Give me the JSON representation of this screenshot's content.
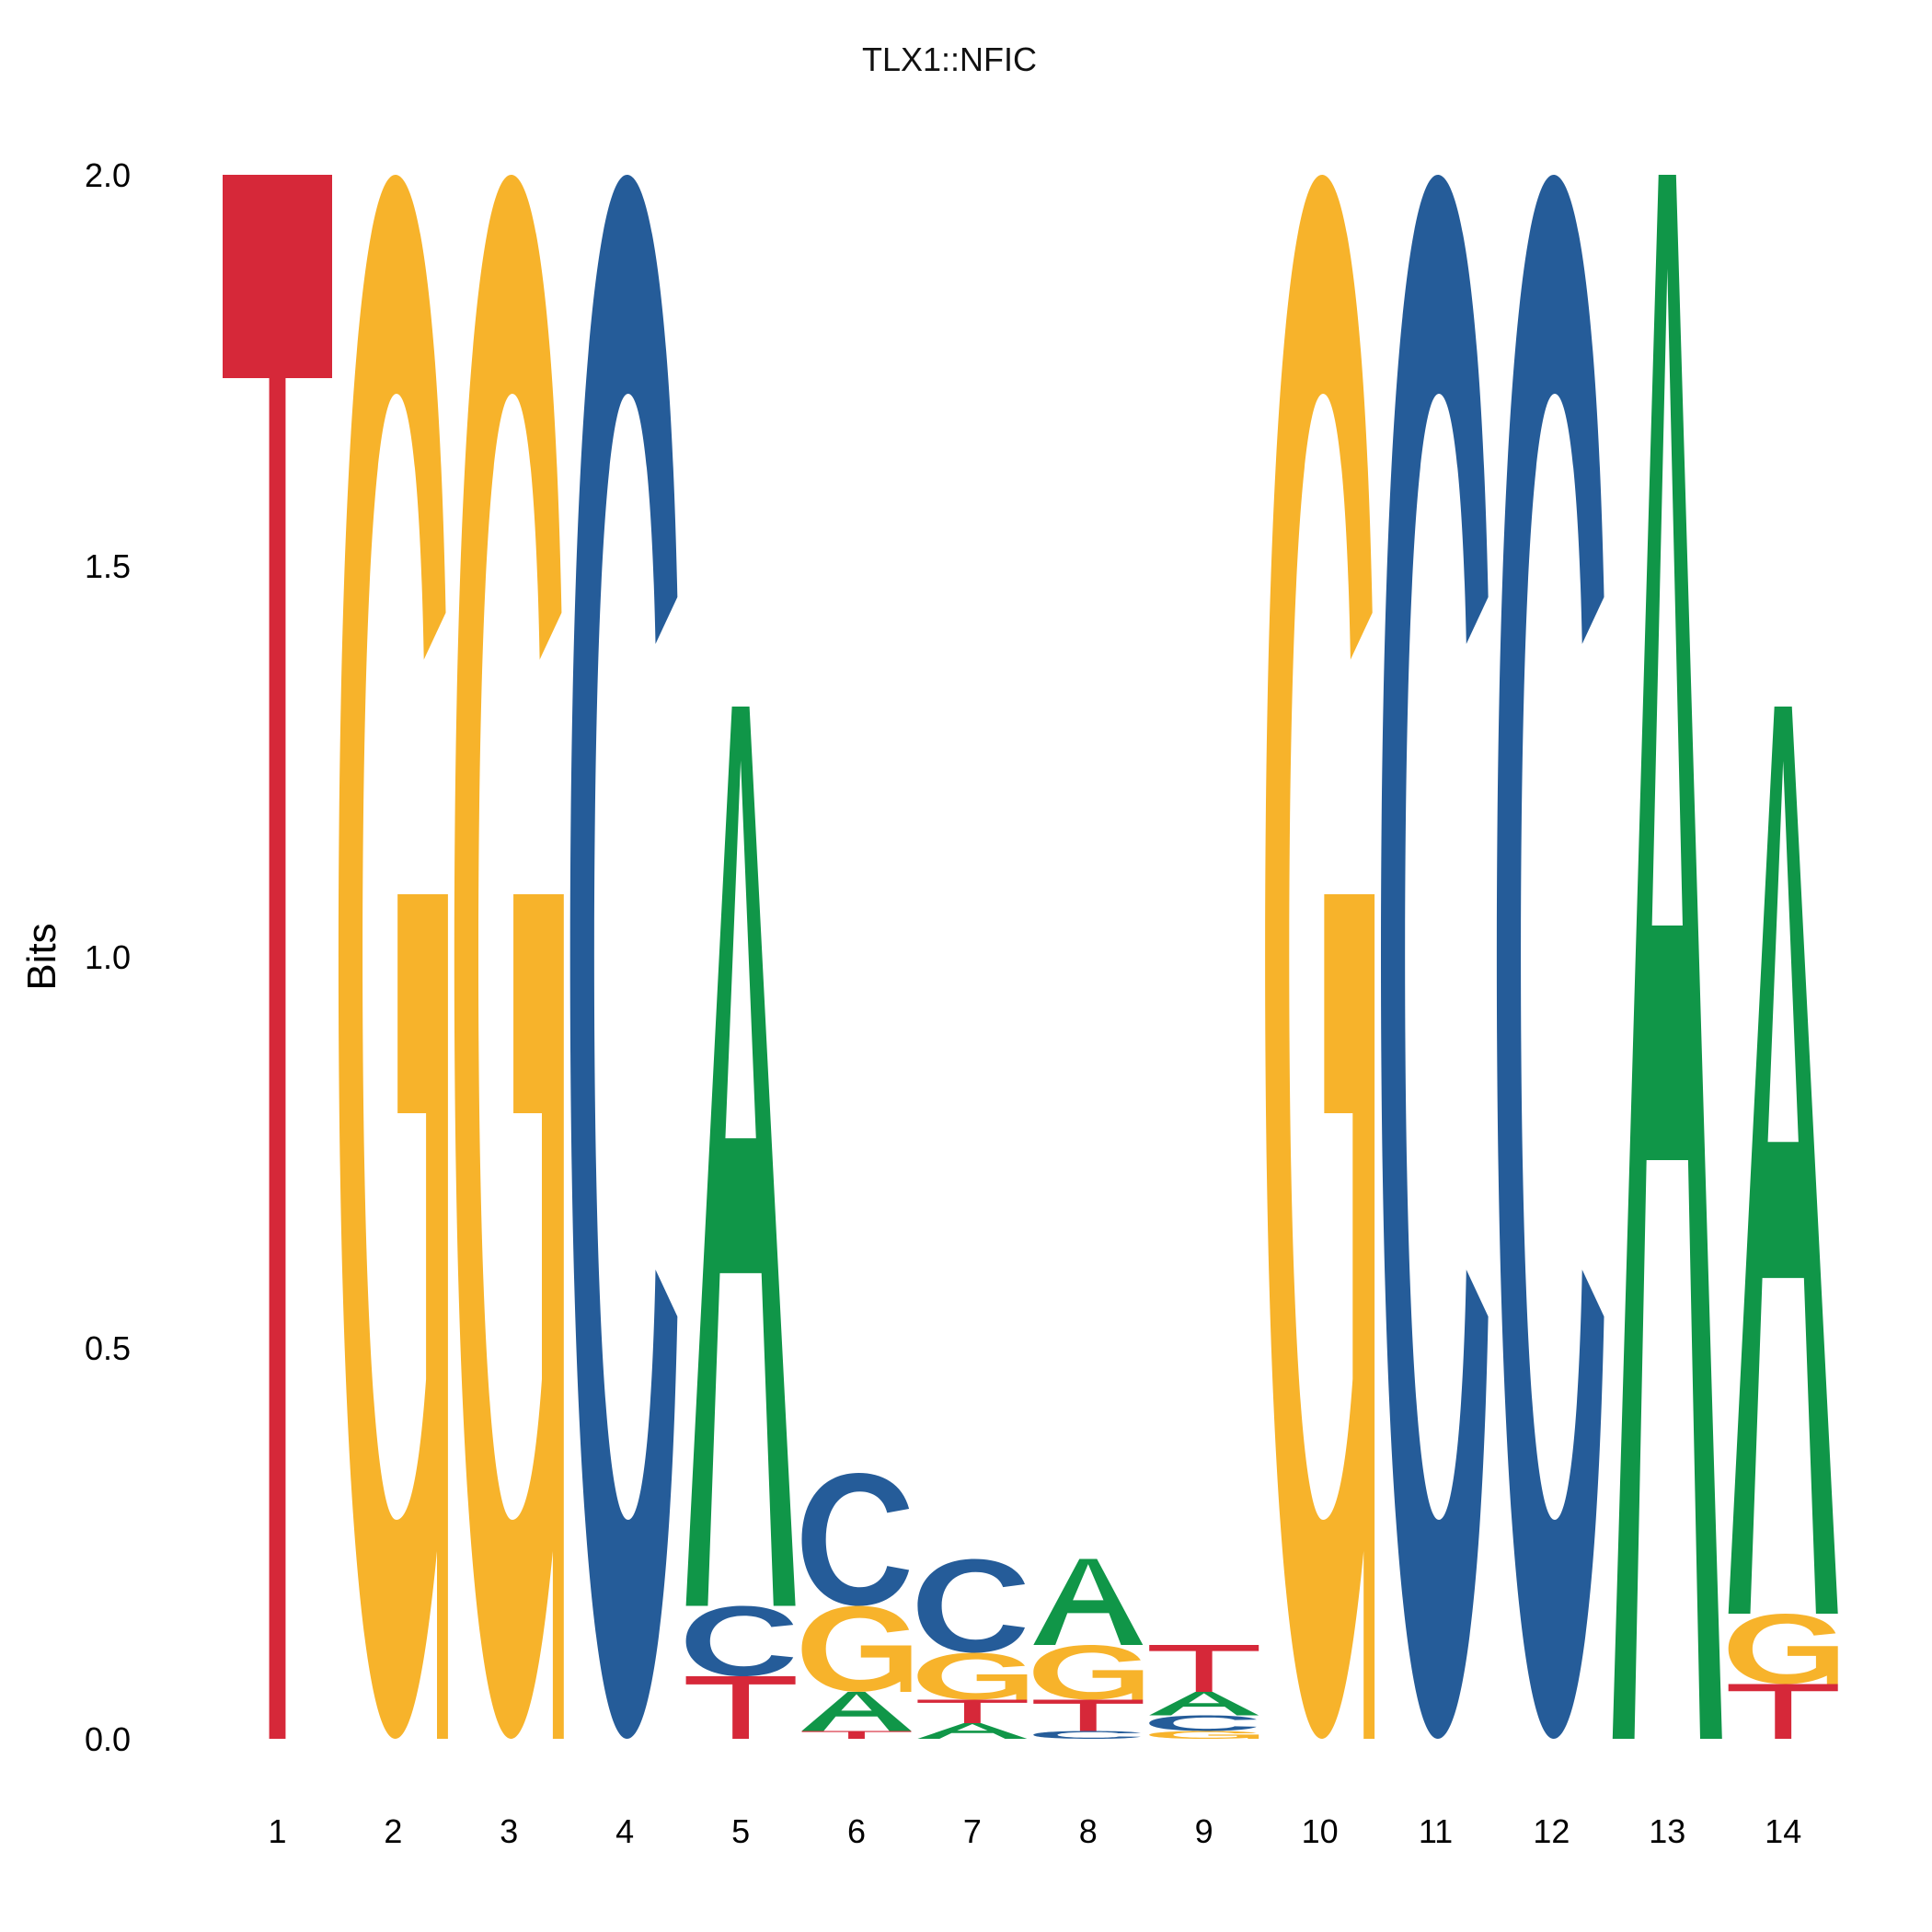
{
  "chart_data": {
    "type": "sequence-logo",
    "title": "TLX1::NFIC",
    "ylabel": "Bits",
    "xlabel": "",
    "ylim": [
      0,
      2
    ],
    "yticks": [
      "0.0",
      "0.5",
      "1.0",
      "1.5",
      "2.0"
    ],
    "yticks_values": [
      0,
      0.5,
      1.0,
      1.5,
      2.0
    ],
    "grid": false,
    "colors": {
      "A": "#109648",
      "C": "#255c99",
      "G": "#f7b32b",
      "T": "#d62839"
    },
    "positions": [
      {
        "pos": "1",
        "letters": [
          {
            "base": "T",
            "bits": 2.0
          }
        ]
      },
      {
        "pos": "2",
        "letters": [
          {
            "base": "G",
            "bits": 2.0
          }
        ]
      },
      {
        "pos": "3",
        "letters": [
          {
            "base": "G",
            "bits": 2.0
          }
        ]
      },
      {
        "pos": "4",
        "letters": [
          {
            "base": "C",
            "bits": 2.0
          }
        ]
      },
      {
        "pos": "5",
        "letters": [
          {
            "base": "T",
            "bits": 0.08
          },
          {
            "base": "C",
            "bits": 0.09
          },
          {
            "base": "A",
            "bits": 1.15
          }
        ]
      },
      {
        "pos": "6",
        "letters": [
          {
            "base": "T",
            "bits": 0.01
          },
          {
            "base": "A",
            "bits": 0.05
          },
          {
            "base": "G",
            "bits": 0.11
          },
          {
            "base": "C",
            "bits": 0.17
          }
        ]
      },
      {
        "pos": "7",
        "letters": [
          {
            "base": "A",
            "bits": 0.02
          },
          {
            "base": "T",
            "bits": 0.03
          },
          {
            "base": "G",
            "bits": 0.06
          },
          {
            "base": "C",
            "bits": 0.12
          }
        ]
      },
      {
        "pos": "8",
        "letters": [
          {
            "base": "C",
            "bits": 0.01
          },
          {
            "base": "T",
            "bits": 0.04
          },
          {
            "base": "G",
            "bits": 0.07
          },
          {
            "base": "A",
            "bits": 0.11
          }
        ]
      },
      {
        "pos": "9",
        "letters": [
          {
            "base": "G",
            "bits": 0.01
          },
          {
            "base": "C",
            "bits": 0.02
          },
          {
            "base": "A",
            "bits": 0.03
          },
          {
            "base": "T",
            "bits": 0.06
          }
        ]
      },
      {
        "pos": "10",
        "letters": [
          {
            "base": "G",
            "bits": 2.0
          }
        ]
      },
      {
        "pos": "11",
        "letters": [
          {
            "base": "C",
            "bits": 2.0
          }
        ]
      },
      {
        "pos": "12",
        "letters": [
          {
            "base": "C",
            "bits": 2.0
          }
        ]
      },
      {
        "pos": "13",
        "letters": [
          {
            "base": "A",
            "bits": 2.0
          }
        ]
      },
      {
        "pos": "14",
        "letters": [
          {
            "base": "T",
            "bits": 0.07
          },
          {
            "base": "G",
            "bits": 0.09
          },
          {
            "base": "A",
            "bits": 1.16
          }
        ]
      }
    ]
  }
}
